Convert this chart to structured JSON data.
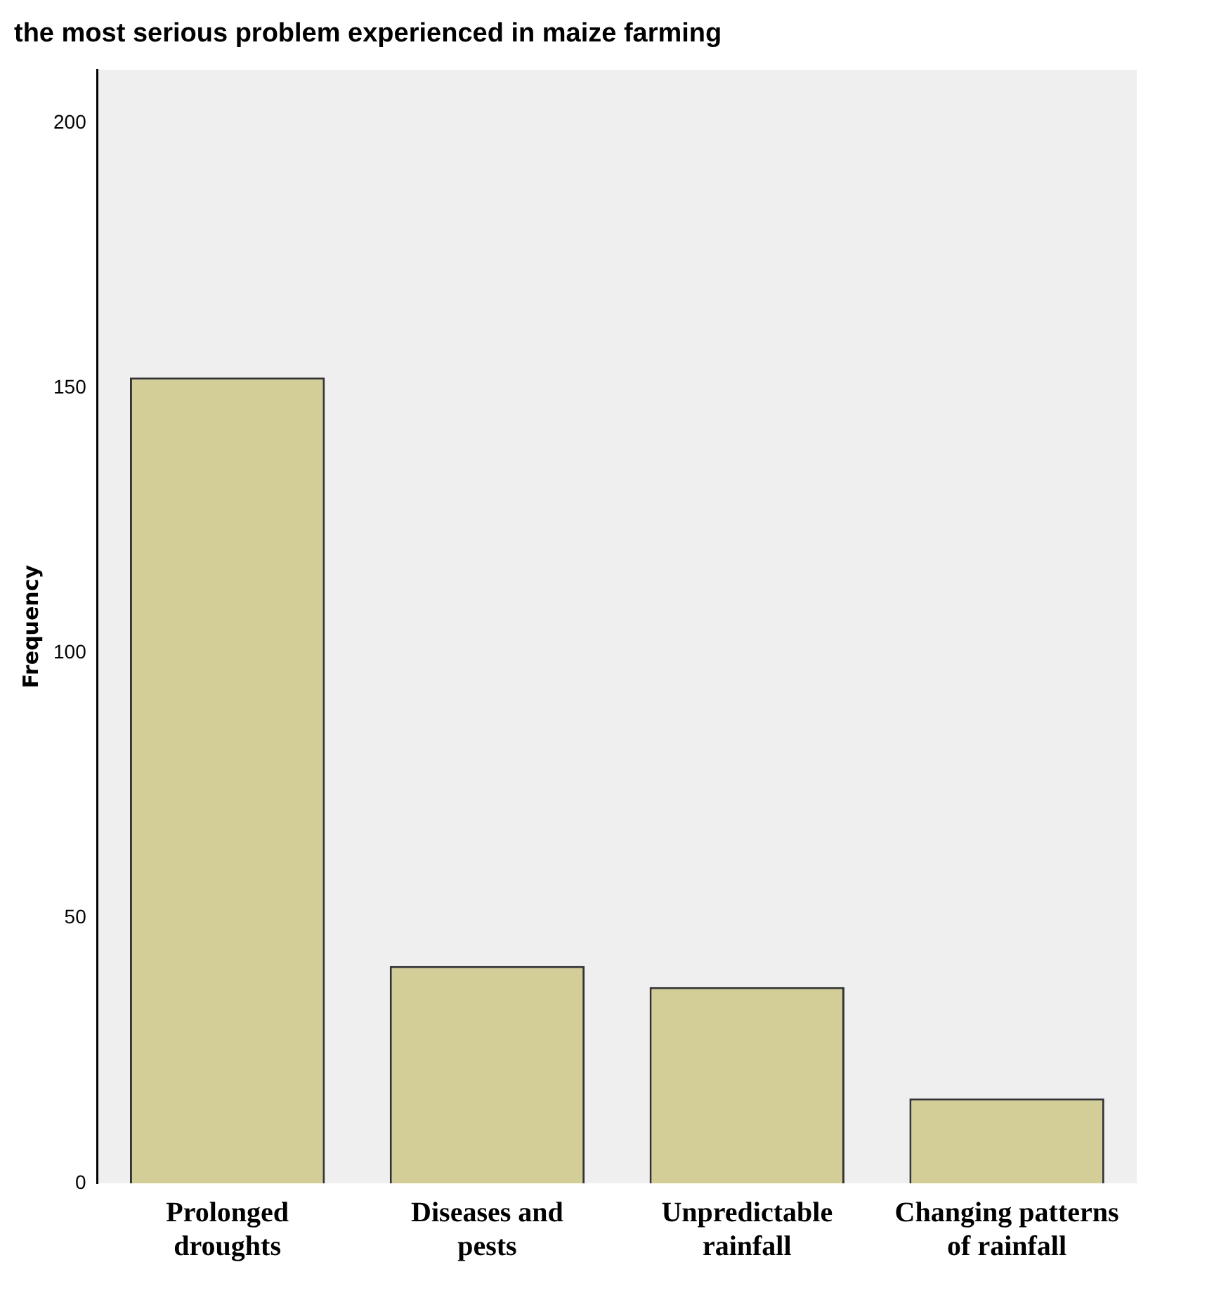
{
  "chart_data": {
    "type": "bar",
    "title": "the most serious problem experienced in maize farming",
    "ylabel": "Frequency",
    "categories": [
      "Prolonged droughts",
      "Diseases and pests",
      "Unpredictable rainfall",
      "Changing patterns of rainfall"
    ],
    "values": [
      152,
      41,
      37,
      16
    ],
    "color": "#d3ce97",
    "ylim": [
      0,
      210
    ],
    "yticks": [
      0,
      50,
      100,
      150,
      200
    ],
    "grid": false,
    "legend": false
  }
}
